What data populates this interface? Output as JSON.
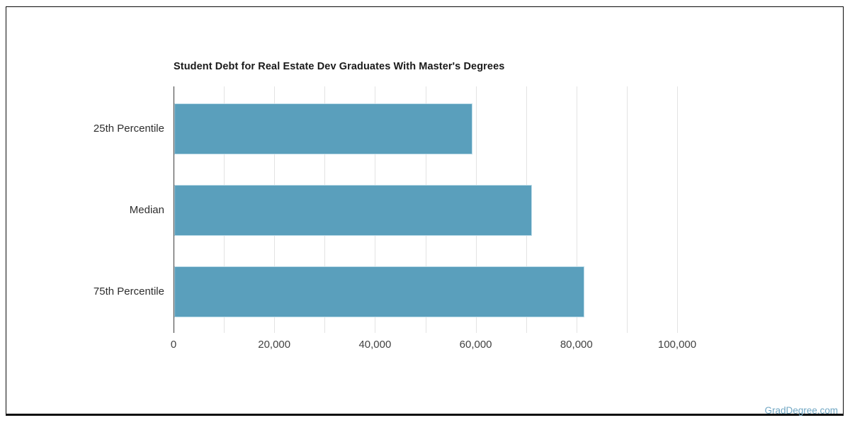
{
  "page": {
    "watermark": "GradDegree.com",
    "watermark_color": "#6fa6c3",
    "background_color": "#ffffff",
    "frame_border_color": "#0b0b0b"
  },
  "chart_data": {
    "type": "bar",
    "orientation": "horizontal",
    "title": "Student Debt for Real Estate Dev Graduates With Master's Degrees",
    "categories": [
      "25th Percentile",
      "Median",
      "75th Percentile"
    ],
    "values": [
      59200,
      71000,
      81500
    ],
    "xlabel": "",
    "ylabel": "",
    "xlim": [
      0,
      100000
    ],
    "x_ticks": [
      0,
      20000,
      40000,
      60000,
      80000,
      100000
    ],
    "x_tick_labels": [
      "0",
      "20,000",
      "40,000",
      "60,000",
      "80,000",
      "100,000"
    ],
    "gridline_interval": 10000,
    "grid": true,
    "legend": "none",
    "bar_color": "#5a9fbc",
    "bar_edge_color": "#bcdbe8",
    "axis_color": "#3b3b3b",
    "gridline_color": "#e3e3e3",
    "title_color": "#1a1a1a",
    "tick_label_color": "#424242",
    "category_label_color": "#2e2e2e"
  }
}
